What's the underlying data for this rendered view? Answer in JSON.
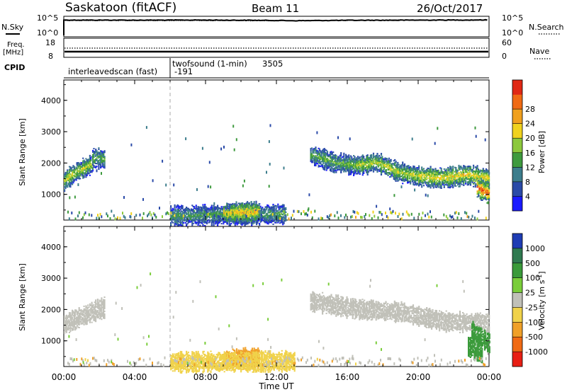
{
  "header": {
    "station": "Saskatoon (fitACF)",
    "beam": "Beam 11",
    "date": "26/Oct/2017"
  },
  "noise_panel": {
    "left_label": "N.Sky",
    "left_ticks": [
      "10^5",
      "10^0"
    ],
    "right_label": "N.Search",
    "right_ticks": [
      "10^5",
      "10^0"
    ]
  },
  "freq_panel": {
    "left_label_line1": "Freq.",
    "left_label_line2": "[MHz]",
    "left_ticks": [
      "18",
      "8"
    ],
    "right_label": "Nave",
    "right_ticks": [
      "60",
      "0"
    ]
  },
  "cpid": {
    "label": "CPID",
    "mode1": "interleavedscan (fast)",
    "mode1_id": "-191",
    "mode2": "twofsound (1-min)",
    "mode2_id": "3505"
  },
  "x_axis": {
    "label": "Time UT",
    "ticks": [
      "00:00",
      "04:00",
      "08:00",
      "12:00",
      "16:00",
      "20:00",
      "00:00"
    ],
    "range_hours": [
      0,
      24
    ],
    "marker_hour": 6
  },
  "power_panel": {
    "ylabel": "Slant Range [km]",
    "yticks": [
      "1000",
      "2000",
      "3000",
      "4000"
    ],
    "yrange_km": [
      180,
      4650
    ],
    "colorbar_label": "Power [dB]",
    "colorbar_ticks": [
      "4",
      "8",
      "12",
      "16",
      "20",
      "24",
      "28"
    ],
    "colorbar_colors": [
      "#1a1aff",
      "#2a4aa8",
      "#3c7d8c",
      "#3e9a3e",
      "#8cc83c",
      "#f0d21e",
      "#f0a01e",
      "#f06a14",
      "#e02814"
    ]
  },
  "velocity_panel": {
    "ylabel": "Slant Range [km]",
    "yticks": [
      "1000",
      "2000",
      "3000",
      "4000"
    ],
    "yrange_km": [
      180,
      4650
    ],
    "colorbar_label": "Velocity [m s^-1]",
    "colorbar_ticks": [
      "1000",
      "500",
      "100",
      "25",
      "-25",
      "-100",
      "-500",
      "-1000"
    ],
    "colorbar_colors": [
      "#1e3cb4",
      "#2f7a50",
      "#3a9a3a",
      "#7acd3a",
      "#c0c0b8",
      "#f0d24a",
      "#f0a028",
      "#f06a14",
      "#e81e14"
    ]
  },
  "chart_data": [
    {
      "type": "line",
      "title": "Saskatoon (fitACF) Beam 11 26/Oct/2017",
      "series": [
        {
          "name": "N.Sky",
          "x": [
            0,
            2,
            4,
            6,
            8,
            10,
            12,
            13,
            14,
            16,
            18,
            20,
            22,
            24
          ],
          "values": [
            30000,
            28000,
            27000,
            28000,
            29000,
            26000,
            22000,
            18000,
            20000,
            24000,
            26000,
            28000,
            30000,
            32000
          ]
        },
        {
          "name": "N.Search",
          "x": [
            0,
            4,
            8,
            12,
            16,
            18,
            19,
            20,
            24
          ],
          "values": [
            20000,
            18000,
            19000,
            16000,
            20000,
            30000,
            40000,
            25000,
            22000
          ]
        }
      ],
      "ylabel": "N.Sky",
      "y_scale": "log",
      "ylim": [
        1,
        100000
      ]
    },
    {
      "type": "line",
      "series": [
        {
          "name": "Freq. [MHz]",
          "x": [
            0,
            24
          ],
          "values": [
            10.5,
            10.5
          ]
        },
        {
          "name": "Nave",
          "x": [
            0,
            24
          ],
          "values": [
            28,
            28
          ]
        }
      ],
      "ylim_left": [
        8,
        18
      ],
      "ylim_right": [
        0,
        60
      ]
    },
    {
      "type": "heatmap",
      "title": "Power [dB]",
      "xlabel": "Time UT",
      "ylabel": "Slant Range [km]",
      "xlim": [
        0,
        24
      ],
      "ylim": [
        180,
        4650
      ],
      "colorbar": {
        "label": "Power [dB]",
        "min": 0,
        "max": 32
      },
      "bands": [
        {
          "t_start": 0.0,
          "t_end": 1.6,
          "r_center": [
            1400,
            1650,
            1800,
            1950
          ],
          "value": 18
        },
        {
          "t_start": 1.6,
          "t_end": 2.3,
          "r_center": [
            2150,
            2100
          ],
          "value": 14
        },
        {
          "t_start": 13.9,
          "t_end": 16.5,
          "r_center": [
            2250,
            2000,
            1900
          ],
          "value": 14
        },
        {
          "t_start": 16.5,
          "t_end": 20.0,
          "r_center": [
            1900,
            2000,
            1700,
            1550
          ],
          "value": 18
        },
        {
          "t_start": 20.0,
          "t_end": 24.0,
          "r_center": [
            1550,
            1500,
            1600,
            1500
          ],
          "value": 20
        },
        {
          "t_start": 23.3,
          "t_end": 24.0,
          "r_center": [
            1200,
            1000
          ],
          "value": 28
        },
        {
          "t_start": 6.0,
          "t_end": 12.5,
          "r_center": [
            300,
            330,
            350
          ],
          "value": 12
        },
        {
          "t_start": 9.0,
          "t_end": 11.0,
          "r_center": [
            380,
            420
          ],
          "value": 22
        }
      ]
    },
    {
      "type": "heatmap",
      "title": "Velocity [m s^-1]",
      "xlabel": "Time UT",
      "ylabel": "Slant Range [km]",
      "xlim": [
        0,
        24
      ],
      "ylim": [
        180,
        4650
      ],
      "colorbar": {
        "label": "Velocity [m s^-1]",
        "levels": [
          -1000,
          -500,
          -100,
          -25,
          25,
          100,
          500,
          1000
        ]
      },
      "bands": [
        {
          "t_start": 0.0,
          "t_end": 2.3,
          "r_center": [
            1500,
            1700,
            1900,
            2050
          ],
          "value": 0
        },
        {
          "t_start": 13.9,
          "t_end": 24.0,
          "r_center": [
            2250,
            2000,
            1900,
            1600,
            1550
          ],
          "value": 0
        },
        {
          "t_start": 23.0,
          "t_end": 24.0,
          "r_center": [
            1300,
            900
          ],
          "value": 120
        },
        {
          "t_start": 22.8,
          "t_end": 23.6,
          "r_center": [
            800,
            600
          ],
          "value": 300
        },
        {
          "t_start": 9.0,
          "t_end": 11.0,
          "r_center": [
            380,
            450
          ],
          "value": -300
        },
        {
          "t_start": 6.0,
          "t_end": 13.0,
          "r_center": [
            300,
            330
          ],
          "value": -60
        }
      ]
    }
  ]
}
